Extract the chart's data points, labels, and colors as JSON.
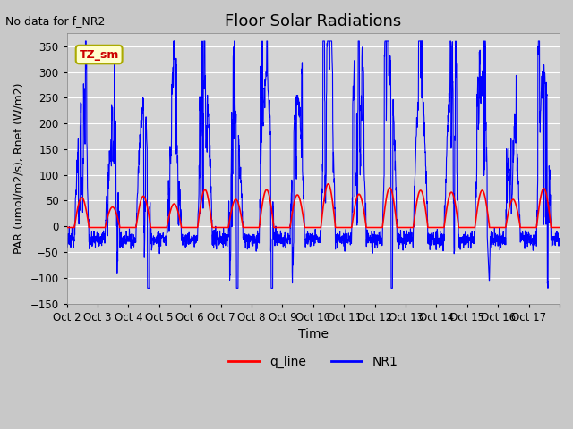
{
  "title": "Floor Solar Radiations",
  "xlabel": "Time",
  "ylabel": "PAR (umol/m2/s), Rnet (W/m2)",
  "top_left_text": "No data for f_NR2",
  "annotation_box": "TZ_sm",
  "ylim": [
    -150,
    375
  ],
  "yticks": [
    -150,
    -100,
    -50,
    0,
    50,
    100,
    150,
    200,
    250,
    300,
    350
  ],
  "xtick_labels": [
    "Oct 2",
    "Oct 3",
    "Oct 4",
    "Oct 5",
    "Oct 6",
    "Oct 7",
    "Oct 8",
    "Oct 9",
    "Oct 10",
    "Oct 11",
    "Oct 12",
    "Oct 13",
    "Oct 14",
    "Oct 15",
    "Oct 16",
    "Oct 17"
  ],
  "legend_labels": [
    "q_line",
    "NR1"
  ],
  "legend_colors": [
    "#ff0000",
    "#0000ff"
  ],
  "fig_bg_color": "#c8c8c8",
  "plot_bg_color": "#d4d4d4",
  "grid_color": "#ffffff",
  "num_days": 16,
  "points_per_day": 144,
  "seed": 42
}
